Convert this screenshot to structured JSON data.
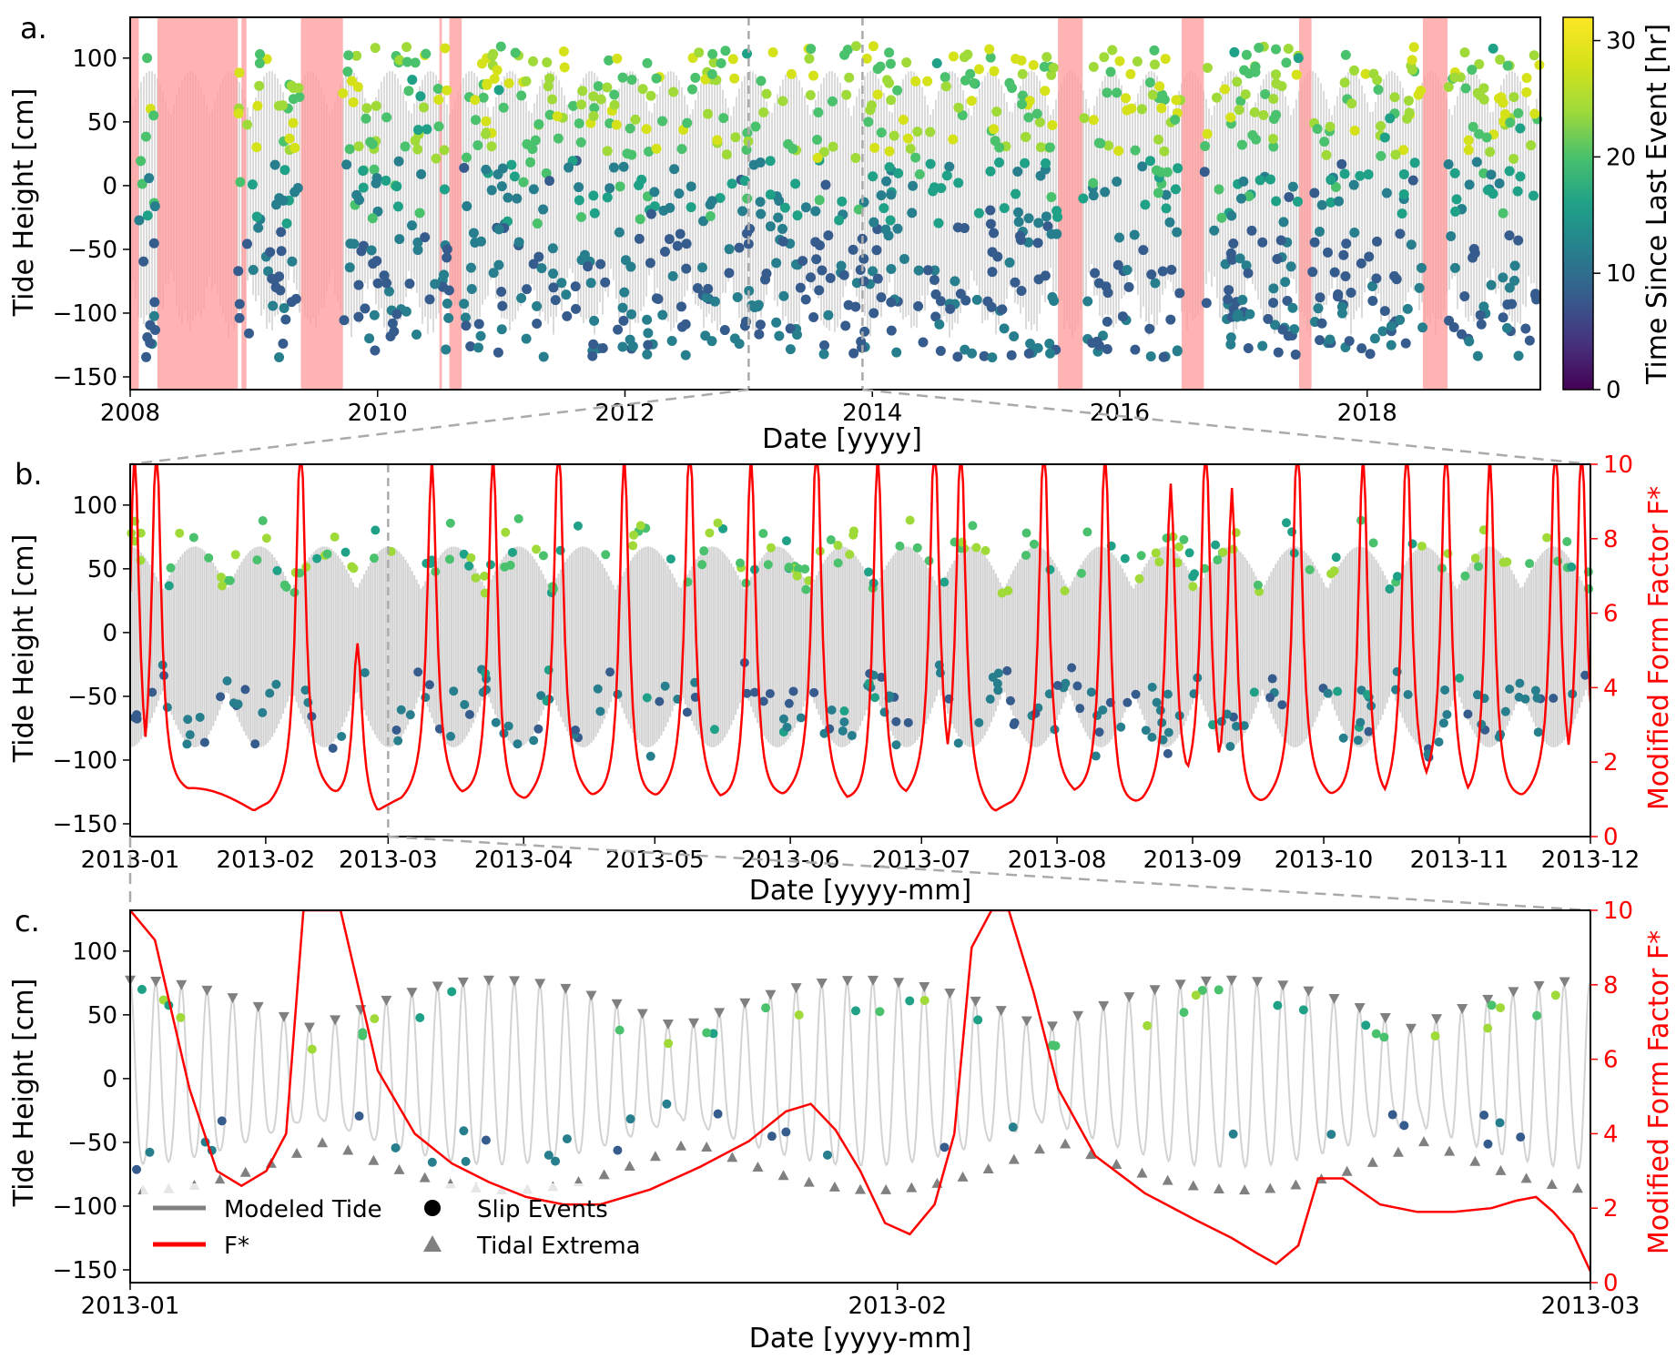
{
  "chart_data": [
    {
      "panel_label": "a.",
      "type": "scatter",
      "xlabel": "Date [yyyy]",
      "ylabel": "Tide Height [cm]",
      "xlim": [
        2008.0,
        2019.4
      ],
      "ylim": [
        -160,
        132
      ],
      "x_ticks": [
        2008,
        2010,
        2012,
        2014,
        2016,
        2018
      ],
      "x_tick_labels": [
        "2008",
        "2010",
        "2012",
        "2014",
        "2016",
        "2018"
      ],
      "y_ticks": [
        -150,
        -100,
        -50,
        0,
        50,
        100
      ],
      "y_tick_labels": [
        "−150",
        "−100",
        "−50",
        "0",
        "50",
        "100"
      ],
      "colorbar": {
        "label": "Time Since Last Event [hr]",
        "range": [
          0,
          32
        ],
        "ticks": [
          0,
          10,
          20,
          30
        ],
        "tick_labels": [
          "0",
          "10",
          "20",
          "30"
        ],
        "colormap": "viridis"
      },
      "gap_bands": [
        [
          2008.0,
          2008.07
        ],
        [
          2008.22,
          2008.87
        ],
        [
          2008.9,
          2008.94
        ],
        [
          2009.38,
          2009.72
        ],
        [
          2010.5,
          2010.52
        ],
        [
          2010.58,
          2010.68
        ],
        [
          2015.5,
          2015.7
        ],
        [
          2016.5,
          2016.68
        ],
        [
          2017.45,
          2017.55
        ],
        [
          2018.45,
          2018.65
        ]
      ],
      "zoom_markers": [
        2013.0,
        2013.92
      ]
    },
    {
      "panel_label": "b.",
      "type": "line",
      "xlabel": "Date [yyyy-mm]",
      "ylabel": "Tide Height [cm]",
      "ylabel_right": "Modified Form Factor F*",
      "xlim": [
        0,
        334
      ],
      "ylim": [
        -160,
        132
      ],
      "ylim_right": [
        0,
        10
      ],
      "x_ticks": [
        0,
        31,
        59,
        90,
        120,
        151,
        181,
        212,
        243,
        273,
        304,
        334
      ],
      "x_tick_labels": [
        "2013-01",
        "2013-02",
        "2013-03",
        "2013-04",
        "2013-05",
        "2013-06",
        "2013-07",
        "2013-08",
        "2013-09",
        "2013-10",
        "2013-11",
        "2013-12"
      ],
      "y_ticks": [
        -150,
        -100,
        -50,
        0,
        50,
        100
      ],
      "y_tick_labels": [
        "−150",
        "−100",
        "−50",
        "0",
        "50",
        "100"
      ],
      "y_ticks_right": [
        0,
        2,
        4,
        6,
        8,
        10
      ],
      "y_tick_labels_right": [
        "0",
        "2",
        "4",
        "6",
        "8",
        "10"
      ],
      "fstar_peak_days": [
        1,
        6,
        39,
        52,
        69,
        83,
        98,
        113,
        128,
        142,
        157,
        171,
        184,
        190,
        209,
        223,
        238,
        246,
        252,
        267,
        282,
        292,
        301,
        311,
        326,
        332
      ],
      "fstar_peak_values": [
        10,
        10,
        10,
        4.5,
        9.2,
        10,
        10,
        10,
        10,
        10,
        10,
        10,
        10,
        10,
        10,
        10,
        8.5,
        10,
        8.8,
        10,
        10,
        10,
        10,
        10,
        10,
        10
      ],
      "zoom_marker_day": 59
    },
    {
      "panel_label": "c.",
      "type": "line",
      "xlabel": "Date [yyyy-mm]",
      "ylabel": "Tide Height [cm]",
      "ylabel_right": "Modified Form Factor F*",
      "xlim": [
        0,
        59
      ],
      "ylim": [
        -160,
        132
      ],
      "ylim_right": [
        0,
        10
      ],
      "x_ticks": [
        0,
        31,
        59
      ],
      "x_tick_labels": [
        "2013-01",
        "2013-02",
        "2013-03"
      ],
      "y_ticks": [
        -150,
        -100,
        -50,
        0,
        50,
        100
      ],
      "y_tick_labels": [
        "−150",
        "−100",
        "−50",
        "0",
        "50",
        "100"
      ],
      "y_ticks_right": [
        0,
        2,
        4,
        6,
        8,
        10
      ],
      "y_tick_labels_right": [
        "0",
        "2",
        "4",
        "6",
        "8",
        "10"
      ],
      "fstar": {
        "days": [
          0,
          1,
          2.4,
          3.5,
          4.5,
          5.5,
          6.3,
          7.0,
          8.5,
          10.0,
          11.5,
          13.0,
          14.5,
          16.0,
          17.5,
          19.0,
          21.0,
          23.0,
          25.0,
          26.5,
          27.5,
          28.5,
          29.5,
          30.5,
          31.5,
          32.5,
          33.3,
          34.0,
          34.8,
          35.5,
          36.5,
          37.5,
          39.0,
          41.0,
          43.0,
          44.5,
          45.5,
          46.3,
          47.2,
          48.0,
          49.0,
          50.5,
          52.0,
          53.5,
          55.0,
          56.0,
          56.8,
          57.5,
          58.3,
          59
        ],
        "values": [
          10,
          9.2,
          5.2,
          3.0,
          2.6,
          3.0,
          4.0,
          10,
          10,
          5.7,
          4.0,
          3.2,
          2.7,
          2.3,
          2.1,
          2.1,
          2.5,
          3.1,
          3.8,
          4.6,
          4.8,
          4.1,
          3.0,
          1.6,
          1.3,
          2.1,
          4.0,
          9.0,
          10,
          10,
          7.8,
          5.2,
          3.4,
          2.4,
          1.7,
          1.2,
          0.8,
          0.5,
          1.0,
          2.8,
          2.8,
          2.1,
          1.9,
          1.9,
          2.0,
          2.2,
          2.3,
          1.9,
          1.3,
          0.3
        ]
      },
      "legend": {
        "position": "lower-left",
        "entries": [
          "Modeled Tide",
          "F*",
          "Slip Events",
          "Tidal Extrema"
        ]
      }
    }
  ],
  "colors": {
    "fstar": "#ff0000",
    "tide": "#d3d3d3",
    "extrema": "#808080",
    "gap_band": "#ff9999",
    "zoom_line": "#aaaaaa"
  }
}
